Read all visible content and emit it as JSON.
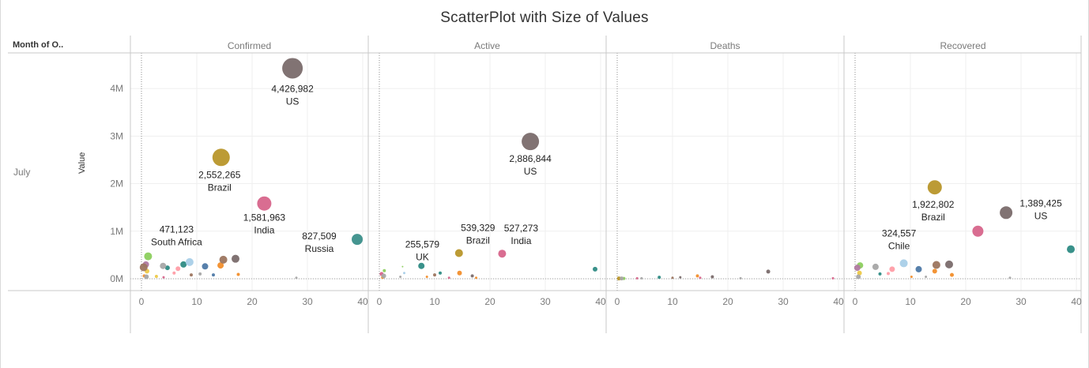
{
  "title": "ScatterPlot with Size of Values",
  "row_header": "Month of O..",
  "row_value": "July",
  "colors": {
    "us": "#7a6b6b",
    "brazil": "#b8962a",
    "india": "#d7658b",
    "russia": "#3b8f8a",
    "south_africa": "#8ccf5e",
    "chile": "#a9cfe8",
    "blue": "#4e79a7",
    "orange": "#f28e2b",
    "brown": "#9c755f",
    "pink": "#ff9da7",
    "gray": "#a7a7a7",
    "purple": "#b07aa1",
    "teal": "#2e8b84",
    "yellow": "#edc948"
  },
  "chart_data": {
    "type": "scatter",
    "title": "ScatterPlot with Size of Values",
    "ylabel": "Value",
    "xlim": [
      -2,
      41
    ],
    "ylim": [
      -250000,
      4750000
    ],
    "x_ticks": [
      0,
      10,
      20,
      30,
      40
    ],
    "y_ticks": [
      0,
      1000000,
      2000000,
      3000000,
      4000000
    ],
    "y_tick_labels": [
      "0M",
      "1M",
      "2M",
      "3M",
      "4M"
    ],
    "panes": [
      {
        "name": "Confirmed",
        "points": [
          {
            "x": 27.3,
            "y": 4426982,
            "color": "us",
            "size": 13,
            "label": "4,426,982",
            "sublabel": "US",
            "lx": 0,
            "ly": 30
          },
          {
            "x": 14.4,
            "y": 2552265,
            "color": "brazil",
            "size": 11,
            "label": "2,552,265",
            "sublabel": "Brazil",
            "lx": -2,
            "ly": 26
          },
          {
            "x": 22.2,
            "y": 1581963,
            "color": "india",
            "size": 9,
            "label": "1,581,963",
            "sublabel": "India",
            "lx": 0,
            "ly": 22
          },
          {
            "x": 39.0,
            "y": 827509,
            "color": "russia",
            "size": 7,
            "label": "827,509",
            "sublabel": "Russia",
            "lx": -48,
            "ly": 0
          },
          {
            "x": 1.2,
            "y": 471123,
            "color": "south_africa",
            "size": 5,
            "label": "471,123",
            "sublabel": "South Africa",
            "lx": 36,
            "ly": -30
          },
          {
            "x": 17.0,
            "y": 420000,
            "color": "us",
            "size": 5
          },
          {
            "x": 14.8,
            "y": 400000,
            "color": "brown",
            "size": 5
          },
          {
            "x": 8.7,
            "y": 350000,
            "color": "chile",
            "size": 5
          },
          {
            "x": 7.6,
            "y": 300000,
            "color": "teal",
            "size": 4
          },
          {
            "x": 11.5,
            "y": 260000,
            "color": "blue",
            "size": 4
          },
          {
            "x": 3.9,
            "y": 270000,
            "color": "gray",
            "size": 4
          },
          {
            "x": 0.8,
            "y": 300000,
            "color": "purple",
            "size": 4
          },
          {
            "x": 0.4,
            "y": 240000,
            "color": "brown",
            "size": 5
          },
          {
            "x": 4.7,
            "y": 230000,
            "color": "teal",
            "size": 3
          },
          {
            "x": 6.6,
            "y": 210000,
            "color": "pink",
            "size": 3
          },
          {
            "x": 14.3,
            "y": 280000,
            "color": "orange",
            "size": 4
          },
          {
            "x": 1.0,
            "y": 160000,
            "color": "yellow",
            "size": 3
          },
          {
            "x": 5.9,
            "y": 120000,
            "color": "pink",
            "size": 2
          },
          {
            "x": 9.0,
            "y": 80000,
            "color": "brown",
            "size": 2
          },
          {
            "x": 10.6,
            "y": 100000,
            "color": "gray",
            "size": 2
          },
          {
            "x": 13.0,
            "y": 80000,
            "color": "blue",
            "size": 2
          },
          {
            "x": 17.5,
            "y": 90000,
            "color": "orange",
            "size": 2
          },
          {
            "x": 2.7,
            "y": 50000,
            "color": "yellow",
            "size": 2
          },
          {
            "x": 0.5,
            "y": 60000,
            "color": "orange",
            "size": 2
          },
          {
            "x": 0.9,
            "y": 40000,
            "color": "gray",
            "size": 3
          },
          {
            "x": 4.0,
            "y": 30000,
            "color": "india",
            "size": 1.5
          },
          {
            "x": 28.0,
            "y": 20000,
            "color": "gray",
            "size": 1.5
          }
        ]
      },
      {
        "name": "Active",
        "points": [
          {
            "x": 27.3,
            "y": 2886844,
            "color": "us",
            "size": 11,
            "label": "2,886,844",
            "sublabel": "US",
            "lx": 0,
            "ly": 26
          },
          {
            "x": 14.4,
            "y": 539329,
            "color": "brazil",
            "size": 5,
            "label": "539,329",
            "sublabel": "Brazil",
            "lx": 24,
            "ly": -28
          },
          {
            "x": 22.2,
            "y": 527273,
            "color": "india",
            "size": 5,
            "label": "527,273",
            "sublabel": "India",
            "lx": 24,
            "ly": -28
          },
          {
            "x": 4.2,
            "y": 255579,
            "color": "south_africa",
            "size": 1,
            "label": "255,579",
            "sublabel": "UK",
            "lx": 25,
            "ly": -24
          },
          {
            "x": 7.6,
            "y": 270000,
            "color": "teal",
            "size": 4
          },
          {
            "x": 39.0,
            "y": 200000,
            "color": "teal",
            "size": 3
          },
          {
            "x": 0.9,
            "y": 170000,
            "color": "south_africa",
            "size": 2
          },
          {
            "x": 0.4,
            "y": 100000,
            "color": "india",
            "size": 2.5
          },
          {
            "x": 0.8,
            "y": 60000,
            "color": "gray",
            "size": 3
          },
          {
            "x": 14.5,
            "y": 120000,
            "color": "orange",
            "size": 3
          },
          {
            "x": 11.0,
            "y": 120000,
            "color": "teal",
            "size": 2
          },
          {
            "x": 10.0,
            "y": 80000,
            "color": "brown",
            "size": 2
          },
          {
            "x": 16.8,
            "y": 60000,
            "color": "us",
            "size": 2
          },
          {
            "x": 4.5,
            "y": 120000,
            "color": "chile",
            "size": 1.5
          },
          {
            "x": 8.6,
            "y": 40000,
            "color": "orange",
            "size": 1.5
          },
          {
            "x": 3.8,
            "y": 40000,
            "color": "gray",
            "size": 1.5
          },
          {
            "x": 17.5,
            "y": 20000,
            "color": "orange",
            "size": 1.5
          },
          {
            "x": 0.6,
            "y": 30000,
            "color": "orange",
            "size": 2
          },
          {
            "x": 12.6,
            "y": 20000,
            "color": "india",
            "size": 1.5
          }
        ]
      },
      {
        "name": "Deaths",
        "points": [
          {
            "x": 27.3,
            "y": 150000,
            "color": "us",
            "size": 2.5
          },
          {
            "x": 0.3,
            "y": 5000,
            "color": "brazil",
            "size": 2.5
          },
          {
            "x": 0.8,
            "y": 5000,
            "color": "gray",
            "size": 2.5
          },
          {
            "x": 0.6,
            "y": 5000,
            "color": "orange",
            "size": 2
          },
          {
            "x": 1.2,
            "y": 5000,
            "color": "south_africa",
            "size": 2
          },
          {
            "x": 7.6,
            "y": 30000,
            "color": "teal",
            "size": 2
          },
          {
            "x": 14.5,
            "y": 60000,
            "color": "orange",
            "size": 2
          },
          {
            "x": 17.2,
            "y": 40000,
            "color": "us",
            "size": 2
          },
          {
            "x": 11.4,
            "y": 30000,
            "color": "us",
            "size": 1.5
          },
          {
            "x": 10.0,
            "y": 20000,
            "color": "brown",
            "size": 1.5
          },
          {
            "x": 15.0,
            "y": 20000,
            "color": "india",
            "size": 1.5
          },
          {
            "x": 4.4,
            "y": 10000,
            "color": "gray",
            "size": 1.5
          },
          {
            "x": 3.6,
            "y": 10000,
            "color": "india",
            "size": 1.5
          },
          {
            "x": 22.3,
            "y": 10000,
            "color": "gray",
            "size": 1.5
          },
          {
            "x": 39.0,
            "y": 10000,
            "color": "india",
            "size": 1.5
          }
        ]
      },
      {
        "name": "Recovered",
        "points": [
          {
            "x": 14.4,
            "y": 1922802,
            "color": "brazil",
            "size": 9,
            "label": "1,922,802",
            "sublabel": "Brazil",
            "lx": -2,
            "ly": 26
          },
          {
            "x": 27.3,
            "y": 1389425,
            "color": "us",
            "size": 8,
            "label": "1,389,425",
            "sublabel": "US",
            "lx": 44,
            "ly": -8
          },
          {
            "x": 22.2,
            "y": 1000000,
            "color": "india",
            "size": 7
          },
          {
            "x": 39.0,
            "y": 620000,
            "color": "teal",
            "size": 5
          },
          {
            "x": 8.8,
            "y": 324557,
            "color": "chile",
            "size": 5,
            "label": "324,557",
            "sublabel": "Chile",
            "lx": -6,
            "ly": -34
          },
          {
            "x": 17.0,
            "y": 300000,
            "color": "us",
            "size": 5
          },
          {
            "x": 14.7,
            "y": 290000,
            "color": "brown",
            "size": 5
          },
          {
            "x": 0.9,
            "y": 280000,
            "color": "south_africa",
            "size": 4
          },
          {
            "x": 3.7,
            "y": 250000,
            "color": "gray",
            "size": 4
          },
          {
            "x": 0.4,
            "y": 230000,
            "color": "purple",
            "size": 4
          },
          {
            "x": 11.5,
            "y": 200000,
            "color": "blue",
            "size": 4
          },
          {
            "x": 6.7,
            "y": 200000,
            "color": "pink",
            "size": 3.5
          },
          {
            "x": 0.8,
            "y": 120000,
            "color": "yellow",
            "size": 3
          },
          {
            "x": 14.4,
            "y": 160000,
            "color": "orange",
            "size": 3
          },
          {
            "x": 4.5,
            "y": 100000,
            "color": "teal",
            "size": 2
          },
          {
            "x": 6.0,
            "y": 110000,
            "color": "pink",
            "size": 2
          },
          {
            "x": 17.5,
            "y": 80000,
            "color": "orange",
            "size": 2.5
          },
          {
            "x": 0.6,
            "y": 40000,
            "color": "gray",
            "size": 3
          },
          {
            "x": 10.2,
            "y": 40000,
            "color": "orange",
            "size": 1.5
          },
          {
            "x": 12.8,
            "y": 40000,
            "color": "gray",
            "size": 1.5
          },
          {
            "x": 28.0,
            "y": 20000,
            "color": "gray",
            "size": 1.5
          }
        ]
      }
    ]
  }
}
